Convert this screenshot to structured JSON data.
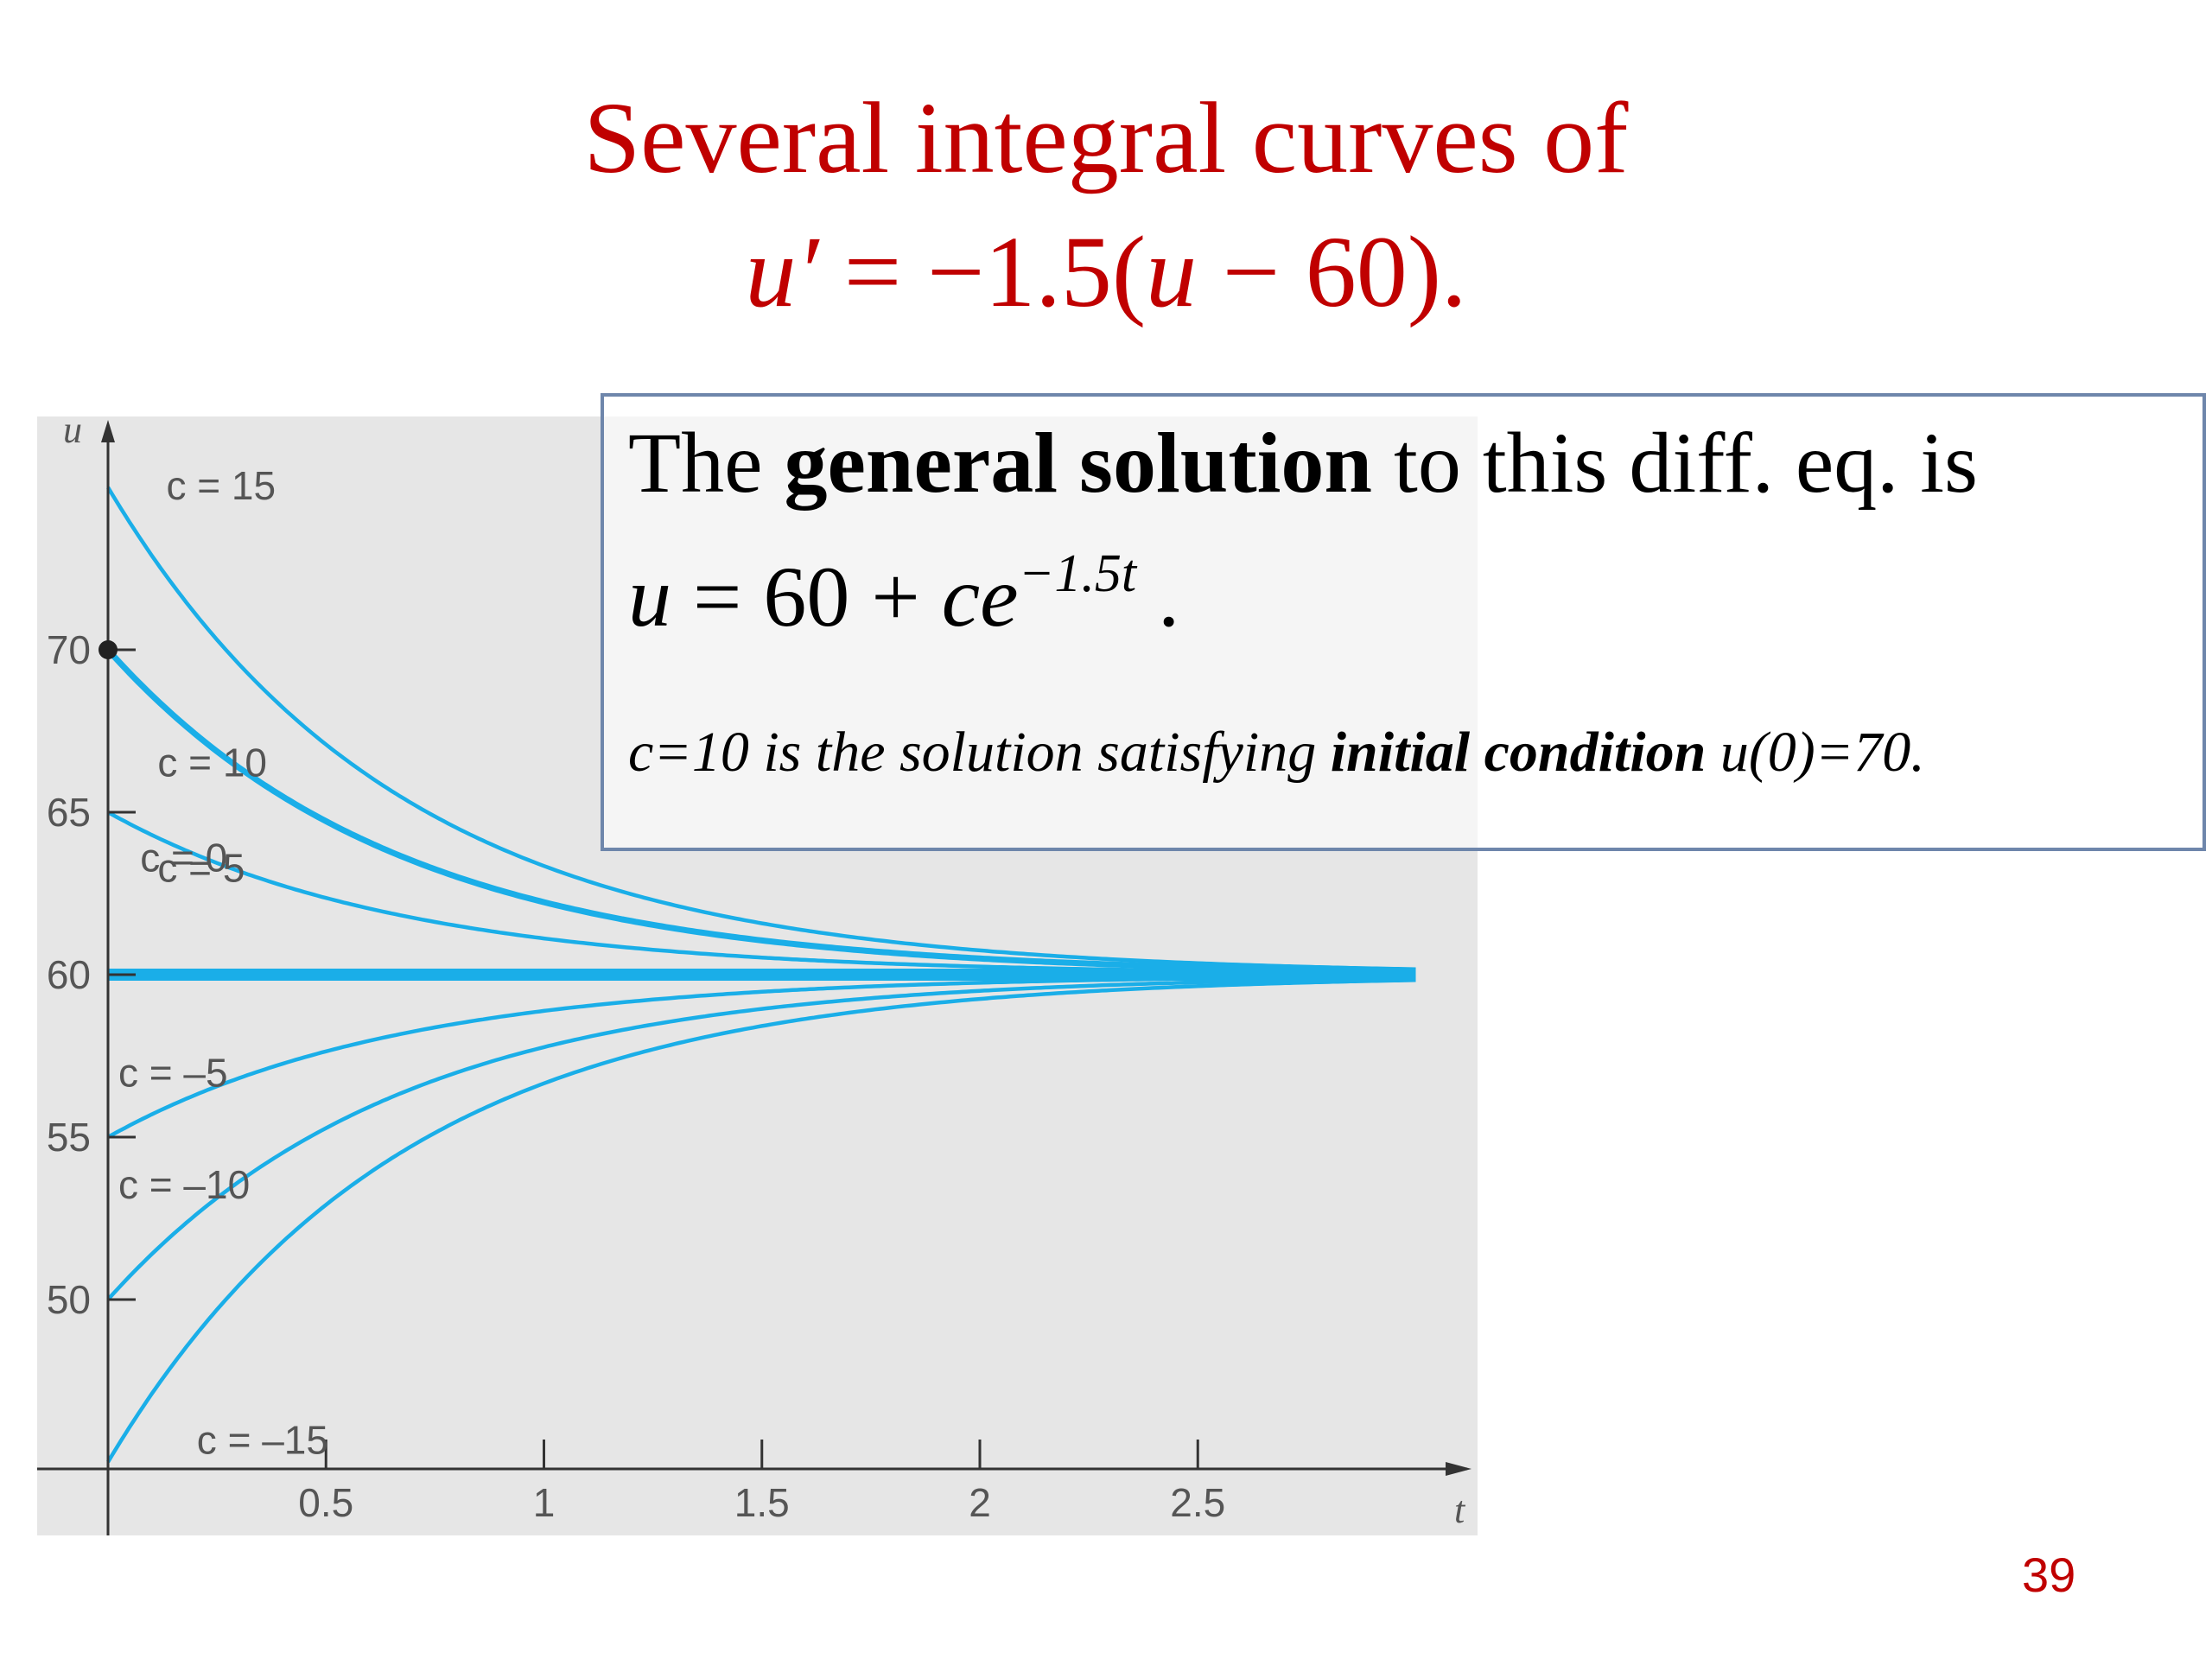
{
  "slide": {
    "title_line1": "Several integral curves of",
    "equation_lhs": "u′",
    "equation_eq": " = −1.5(",
    "equation_u": "u",
    "equation_rest": " − 60).",
    "page_number": "39"
  },
  "solution_box": {
    "text_pre": "The ",
    "text_bold": "general solution",
    "text_post": " to this diff. eq. is",
    "formula_u": "u",
    "formula_mid": " = 60 + ",
    "formula_ce": "ce",
    "formula_exp": "−1.5t",
    "formula_end": " .",
    "ic_pre": "c=10 is the solution  satisfying ",
    "ic_bold": "initial condition",
    "ic_post": " u(0)=70."
  },
  "colors": {
    "title": "#c00000",
    "curve": "#1aaee8",
    "plot_background": "#e6e6e6",
    "box_border": "#6e86ab",
    "axis": "#333333",
    "label": "#555555"
  },
  "chart_data": {
    "type": "line",
    "function": "u = 60 + c·e^(−1.5t)",
    "xlabel": "t",
    "ylabel": "u",
    "xlim": [
      0,
      3.1
    ],
    "ylim": [
      45,
      76
    ],
    "x_ticks": [
      0.5,
      1,
      1.5,
      2,
      2.5
    ],
    "x_tick_labels": [
      "0.5",
      "1",
      "1.5",
      "2",
      "2.5"
    ],
    "y_ticks": [
      50,
      55,
      60,
      65,
      70
    ],
    "y_tick_labels": [
      "50",
      "55",
      "60",
      "65",
      "70"
    ],
    "t_range": [
      0,
      3
    ],
    "series": [
      {
        "name": "c = 15",
        "c": 15
      },
      {
        "name": "c = 10",
        "c": 10
      },
      {
        "name": "c = 5",
        "c": 5
      },
      {
        "name": "c = 0",
        "c": 0
      },
      {
        "name": "c = –5",
        "c": -5
      },
      {
        "name": "c = –10",
        "c": -10
      },
      {
        "name": "c = –15",
        "c": -15
      }
    ],
    "highlight_point": {
      "t": 0,
      "u": 70
    },
    "grid": false,
    "legend": "inline labels"
  }
}
